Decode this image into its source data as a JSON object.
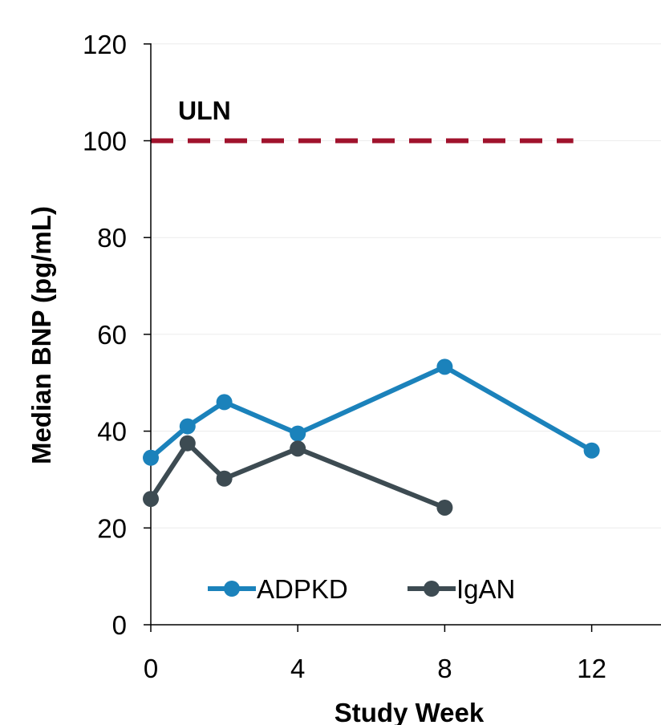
{
  "chart_data": {
    "type": "line",
    "xlabel": "Study Week",
    "ylabel": "Median BNP (pg/mL)",
    "xlim": [
      0,
      14
    ],
    "ylim": [
      0,
      120
    ],
    "x_ticks": [
      0,
      4,
      8,
      12
    ],
    "y_ticks": [
      0,
      20,
      40,
      60,
      80,
      100,
      120
    ],
    "grid": "horizontal",
    "legend_position": "bottom-center",
    "series": [
      {
        "name": "ADPKD",
        "color": "#1b82bb",
        "x": [
          0,
          1,
          2,
          4,
          8,
          12
        ],
        "y": [
          34.5,
          41,
          46,
          39.5,
          53.3,
          36
        ]
      },
      {
        "name": "IgAN",
        "color": "#3d4b52",
        "x": [
          0,
          1,
          2,
          4,
          8
        ],
        "y": [
          26,
          37.5,
          30.2,
          36.4,
          24.2
        ]
      }
    ],
    "reference_line": {
      "label": "ULN",
      "y": 100,
      "x_end": 11.5,
      "color": "#a0122c",
      "style": "dashed"
    }
  }
}
